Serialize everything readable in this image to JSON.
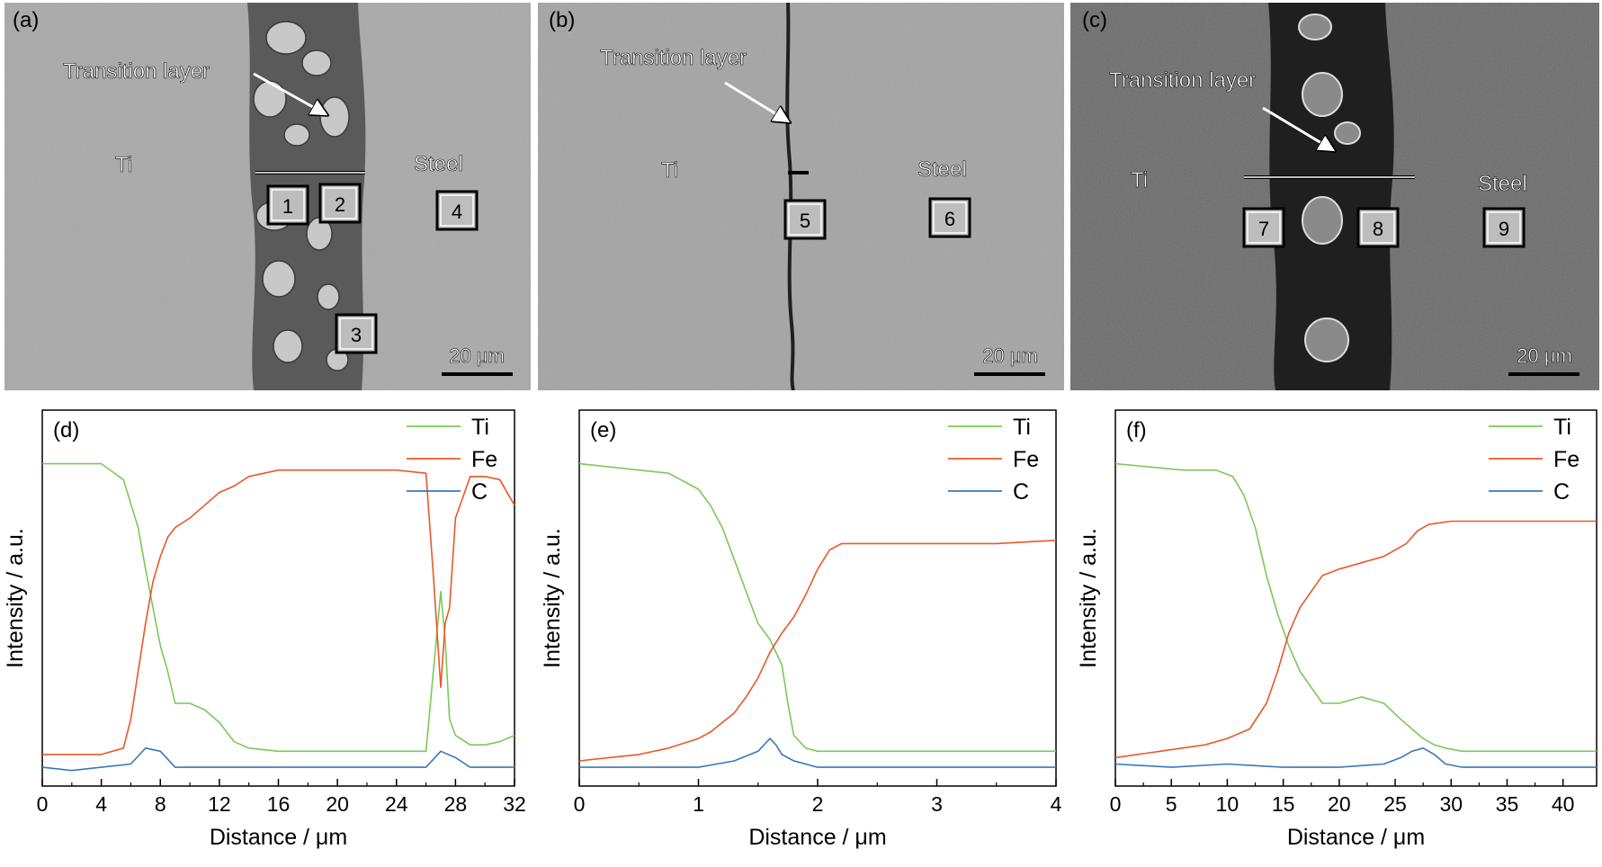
{
  "figure": {
    "sem_panels": [
      {
        "panel_label": "(a)",
        "left_label": "Ti",
        "right_label": "Steel",
        "transition_label": "Transition layer",
        "scale_bar": "20 μm",
        "boxes": [
          "1",
          "2",
          "3",
          "4"
        ]
      },
      {
        "panel_label": "(b)",
        "left_label": "Ti",
        "right_label": "Steel",
        "transition_label": "Transition layer",
        "scale_bar": "20 μm",
        "boxes": [
          "5",
          "6"
        ]
      },
      {
        "panel_label": "(c)",
        "left_label": "Ti",
        "right_label": "Steel",
        "transition_label": "Transition layer",
        "scale_bar": "20 μm",
        "boxes": [
          "7",
          "8",
          "9"
        ]
      }
    ]
  },
  "colors": {
    "Ti": "#7cc85a",
    "Fe": "#e8582a",
    "C": "#3a78b8",
    "axis": "#000000"
  },
  "chart_data": [
    {
      "type": "line",
      "panel_label": "(d)",
      "xlabel": "Distance / μm",
      "ylabel": "Intensity / a.u.",
      "xlim": [
        0,
        32
      ],
      "ylim": [
        0,
        1
      ],
      "x_ticks": [
        0,
        4,
        8,
        12,
        16,
        20,
        24,
        28,
        32
      ],
      "y_ticks": [],
      "legend_position": "top-right",
      "series": [
        {
          "name": "Ti",
          "x": [
            0,
            4,
            5.5,
            6.5,
            7,
            7.5,
            8,
            8.5,
            9,
            10,
            11,
            12,
            13,
            14,
            16,
            20,
            24,
            26,
            26.5,
            27,
            27.3,
            27.6,
            28,
            29,
            30,
            31,
            32
          ],
          "y": [
            0.95,
            0.95,
            0.9,
            0.75,
            0.62,
            0.5,
            0.38,
            0.3,
            0.2,
            0.2,
            0.18,
            0.14,
            0.08,
            0.06,
            0.05,
            0.05,
            0.05,
            0.05,
            0.3,
            0.55,
            0.4,
            0.15,
            0.1,
            0.07,
            0.07,
            0.08,
            0.1
          ]
        },
        {
          "name": "Fe",
          "x": [
            0,
            2,
            4,
            5.5,
            6,
            6.5,
            7,
            7.5,
            8,
            8.5,
            9,
            10,
            11,
            12,
            13,
            14,
            16,
            20,
            24,
            26,
            26.5,
            27,
            27.3,
            27.6,
            28,
            29,
            30,
            31,
            32
          ],
          "y": [
            0.04,
            0.04,
            0.04,
            0.06,
            0.15,
            0.3,
            0.45,
            0.58,
            0.66,
            0.72,
            0.75,
            0.78,
            0.82,
            0.86,
            0.88,
            0.91,
            0.93,
            0.93,
            0.93,
            0.92,
            0.6,
            0.25,
            0.45,
            0.5,
            0.78,
            0.91,
            0.91,
            0.9,
            0.82
          ]
        },
        {
          "name": "C",
          "x": [
            0,
            2,
            4,
            6,
            7,
            8,
            9,
            10,
            12,
            14,
            16,
            18,
            20,
            22,
            24,
            26,
            27,
            28,
            29,
            30,
            31,
            32
          ],
          "y": [
            0.0,
            -0.01,
            0.0,
            0.01,
            0.06,
            0.05,
            0.0,
            0.0,
            0.0,
            0.0,
            0.0,
            0.0,
            0.0,
            0.0,
            0.0,
            0.0,
            0.05,
            0.03,
            0.0,
            0.0,
            0.0,
            0.0
          ]
        }
      ]
    },
    {
      "type": "line",
      "panel_label": "(e)",
      "xlabel": "Distance / μm",
      "ylabel": "Intensity / a.u.",
      "xlim": [
        0,
        4
      ],
      "ylim": [
        0,
        1
      ],
      "x_ticks": [
        0,
        1,
        2,
        3,
        4
      ],
      "y_ticks": [],
      "legend_position": "top-right",
      "series": [
        {
          "name": "Ti",
          "x": [
            0,
            0.25,
            0.5,
            0.75,
            1.0,
            1.1,
            1.2,
            1.3,
            1.4,
            1.5,
            1.6,
            1.7,
            1.75,
            1.8,
            1.9,
            2.0,
            2.5,
            3.0,
            3.5,
            4.0
          ],
          "y": [
            0.95,
            0.94,
            0.93,
            0.92,
            0.87,
            0.82,
            0.75,
            0.65,
            0.55,
            0.45,
            0.4,
            0.32,
            0.2,
            0.1,
            0.06,
            0.05,
            0.05,
            0.05,
            0.05,
            0.05
          ]
        },
        {
          "name": "Fe",
          "x": [
            0,
            0.25,
            0.5,
            0.75,
            1.0,
            1.1,
            1.2,
            1.3,
            1.4,
            1.5,
            1.6,
            1.7,
            1.8,
            1.9,
            2.0,
            2.1,
            2.2,
            2.5,
            3.0,
            3.5,
            4.0
          ],
          "y": [
            0.02,
            0.03,
            0.04,
            0.06,
            0.09,
            0.11,
            0.14,
            0.17,
            0.22,
            0.28,
            0.36,
            0.42,
            0.47,
            0.54,
            0.62,
            0.68,
            0.7,
            0.7,
            0.7,
            0.7,
            0.71
          ]
        },
        {
          "name": "C",
          "x": [
            0,
            0.5,
            1.0,
            1.3,
            1.5,
            1.6,
            1.65,
            1.7,
            1.8,
            2.0,
            2.5,
            3.0,
            3.5,
            4.0
          ],
          "y": [
            0.0,
            0.0,
            0.0,
            0.02,
            0.05,
            0.09,
            0.07,
            0.04,
            0.02,
            0.0,
            0.0,
            0.0,
            0.0,
            0.0
          ]
        }
      ]
    },
    {
      "type": "line",
      "panel_label": "(f)",
      "xlabel": "Distance / μm",
      "ylabel": "Intensity / a.u.",
      "xlim": [
        0,
        43
      ],
      "ylim": [
        0,
        1
      ],
      "x_ticks": [
        0,
        5,
        10,
        15,
        20,
        25,
        30,
        35,
        40
      ],
      "y_ticks": [],
      "legend_position": "top-right",
      "series": [
        {
          "name": "Ti",
          "x": [
            0,
            3,
            6,
            9,
            10.5,
            11.5,
            12.5,
            13.5,
            14.5,
            15.5,
            16.5,
            17.5,
            18.5,
            20,
            22,
            24,
            25.5,
            26.5,
            27.5,
            28.5,
            29.5,
            31,
            35,
            40,
            43
          ],
          "y": [
            0.95,
            0.94,
            0.93,
            0.93,
            0.91,
            0.85,
            0.75,
            0.6,
            0.48,
            0.38,
            0.3,
            0.25,
            0.2,
            0.2,
            0.22,
            0.2,
            0.15,
            0.12,
            0.09,
            0.07,
            0.06,
            0.05,
            0.05,
            0.05,
            0.05
          ]
        },
        {
          "name": "Fe",
          "x": [
            0,
            4,
            8,
            10,
            12,
            13.5,
            14.5,
            15.5,
            16.5,
            17.5,
            18.5,
            20,
            22,
            24,
            26,
            27,
            28,
            30,
            35,
            40,
            43
          ],
          "y": [
            0.03,
            0.05,
            0.07,
            0.09,
            0.12,
            0.2,
            0.3,
            0.42,
            0.5,
            0.55,
            0.6,
            0.62,
            0.64,
            0.66,
            0.7,
            0.74,
            0.76,
            0.77,
            0.77,
            0.77,
            0.77
          ]
        },
        {
          "name": "C",
          "x": [
            0,
            5,
            10,
            15,
            20,
            24,
            25.5,
            26.5,
            27.5,
            28.5,
            29.5,
            31,
            35,
            40,
            43
          ],
          "y": [
            0.01,
            0.0,
            0.01,
            0.0,
            0.0,
            0.01,
            0.03,
            0.05,
            0.06,
            0.04,
            0.01,
            0.0,
            0.0,
            0.0,
            0.0
          ]
        }
      ]
    }
  ]
}
